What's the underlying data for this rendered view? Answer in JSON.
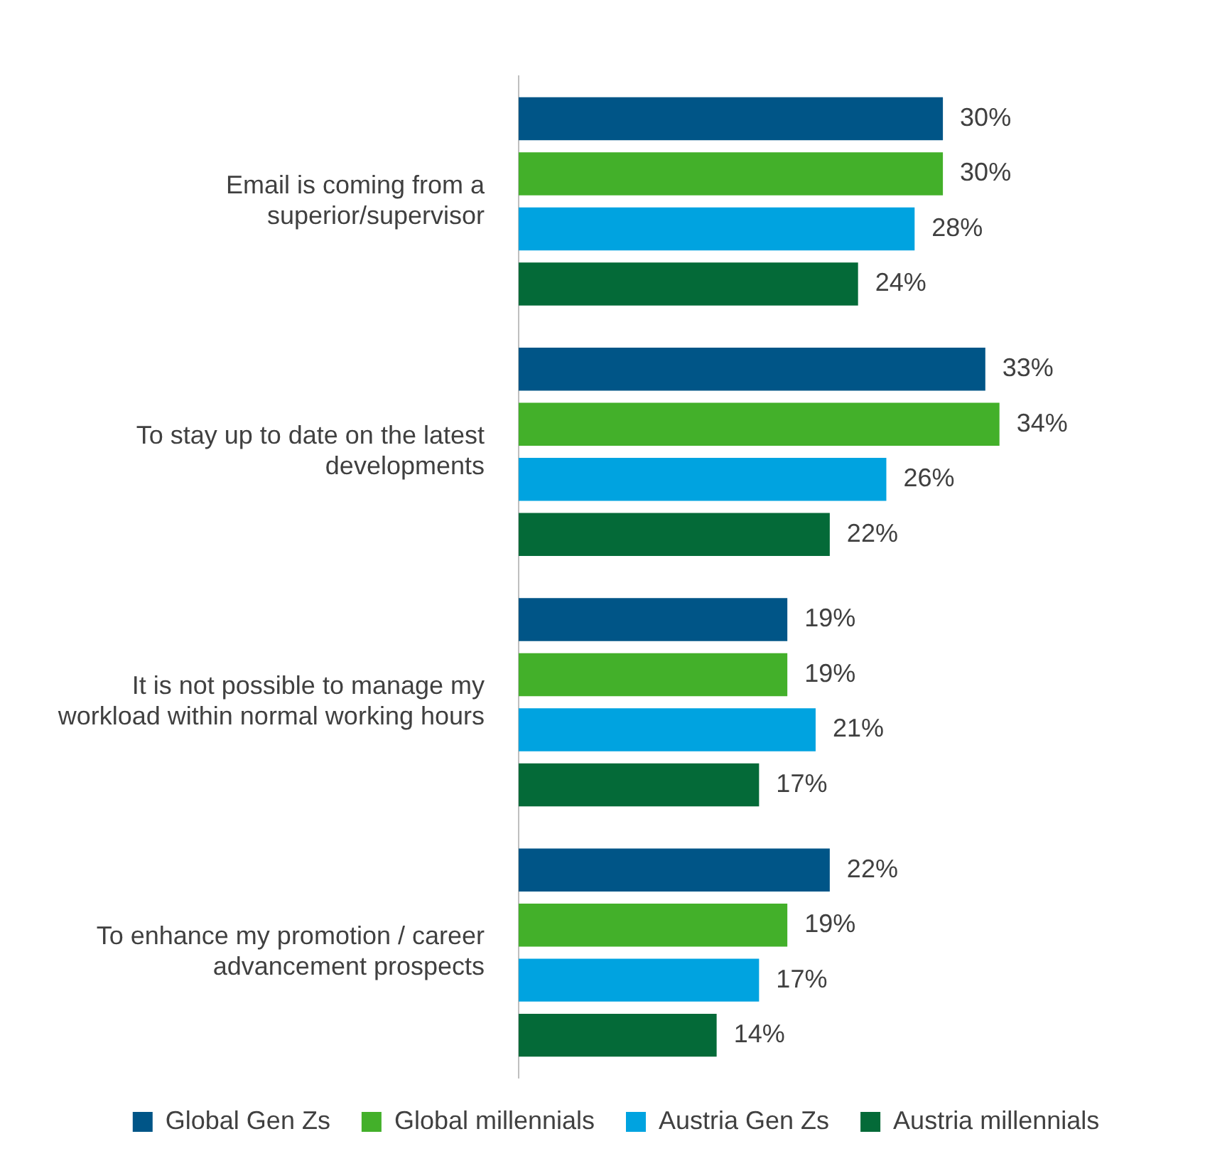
{
  "chart_data": {
    "type": "bar",
    "orientation": "horizontal",
    "legend": "bottom",
    "grid": false,
    "categories": [
      "Email is coming from a superior/supervisor",
      "To stay up to date on the latest developments",
      "It is not possible to manage my workload within normal working hours",
      "To enhance my promotion / career advancement prospects"
    ],
    "series": [
      {
        "name": "Global Gen Zs",
        "color": "#005587",
        "values": [
          30,
          33,
          19,
          22
        ],
        "value_labels": [
          "30%",
          "33%",
          "19%",
          "22%"
        ]
      },
      {
        "name": "Global millennials",
        "color": "#43b02a",
        "values": [
          30,
          34,
          19,
          19
        ],
        "value_labels": [
          "30%",
          "34%",
          "19%",
          "19%"
        ]
      },
      {
        "name": "Austria Gen Zs",
        "color": "#00a3e0",
        "values": [
          28,
          26,
          21,
          17
        ],
        "value_labels": [
          "28%",
          "26%",
          "21%",
          "17%"
        ]
      },
      {
        "name": "Austria millennials",
        "color": "#046a38",
        "values": [
          24,
          22,
          17,
          14
        ],
        "value_labels": [
          "24%",
          "22%",
          "17%",
          "14%"
        ]
      }
    ]
  }
}
